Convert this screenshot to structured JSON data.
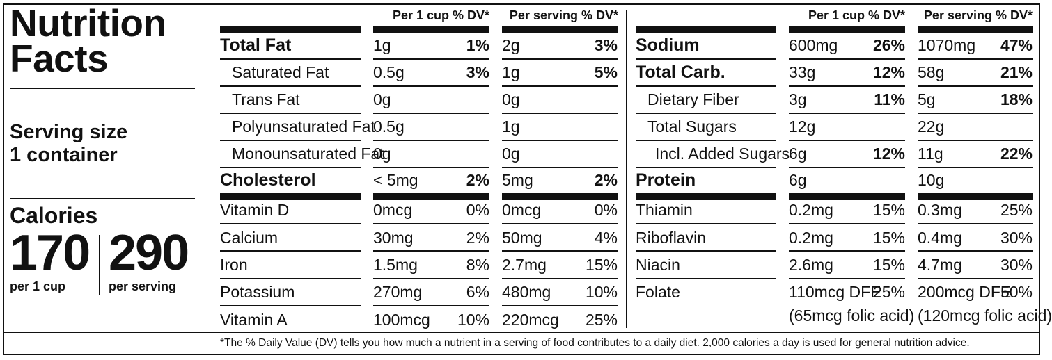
{
  "title_line1": "Nutrition",
  "title_line2": "Facts",
  "serving_size_label": "Serving size",
  "serving_size_value": "1 container",
  "calories_label": "Calories",
  "calories_per_cup": "170",
  "calories_per_cup_label": "per 1 cup",
  "calories_per_serving": "290",
  "calories_per_serving_label": "per serving",
  "col_per_cup": "Per 1 cup % DV*",
  "col_per_serving": "Per serving % DV*",
  "left_rows": [
    {
      "name": "Total Fat",
      "cup_amt": "1g",
      "cup_dv": "1%",
      "serv_amt": "2g",
      "serv_dv": "3%"
    },
    {
      "name": "Saturated Fat",
      "cup_amt": "0.5g",
      "cup_dv": "3%",
      "serv_amt": "1g",
      "serv_dv": "5%"
    },
    {
      "name": "Trans Fat",
      "cup_amt": "0g",
      "cup_dv": "",
      "serv_amt": "0g",
      "serv_dv": ""
    },
    {
      "name": "Polyunsaturated Fat",
      "cup_amt": "0.5g",
      "cup_dv": "",
      "serv_amt": "1g",
      "serv_dv": ""
    },
    {
      "name": "Monounsaturated Fat",
      "cup_amt": "0g",
      "cup_dv": "",
      "serv_amt": "0g",
      "serv_dv": ""
    },
    {
      "name": "Cholesterol",
      "cup_amt": "< 5mg",
      "cup_dv": "2%",
      "serv_amt": "5mg",
      "serv_dv": "2%"
    },
    {
      "name": "Vitamin D",
      "cup_amt": "0mcg",
      "cup_dv": "0%",
      "serv_amt": "0mcg",
      "serv_dv": "0%"
    },
    {
      "name": "Calcium",
      "cup_amt": "30mg",
      "cup_dv": "2%",
      "serv_amt": "50mg",
      "serv_dv": "4%"
    },
    {
      "name": "Iron",
      "cup_amt": "1.5mg",
      "cup_dv": "8%",
      "serv_amt": "2.7mg",
      "serv_dv": "15%"
    },
    {
      "name": "Potassium",
      "cup_amt": "270mg",
      "cup_dv": "6%",
      "serv_amt": "480mg",
      "serv_dv": "10%"
    },
    {
      "name": "Vitamin A",
      "cup_amt": "100mcg",
      "cup_dv": "10%",
      "serv_amt": "220mcg",
      "serv_dv": "25%"
    }
  ],
  "right_rows": [
    {
      "name": "Sodium",
      "cup_amt": "600mg",
      "cup_dv": "26%",
      "serv_amt": "1070mg",
      "serv_dv": "47%"
    },
    {
      "name": "Total Carb.",
      "cup_amt": "33g",
      "cup_dv": "12%",
      "serv_amt": "58g",
      "serv_dv": "21%"
    },
    {
      "name": "Dietary Fiber",
      "cup_amt": "3g",
      "cup_dv": "11%",
      "serv_amt": "5g",
      "serv_dv": "18%"
    },
    {
      "name": "Total Sugars",
      "cup_amt": "12g",
      "cup_dv": "",
      "serv_amt": "22g",
      "serv_dv": ""
    },
    {
      "name": "Incl. Added Sugars",
      "cup_amt": "6g",
      "cup_dv": "12%",
      "serv_amt": "11g",
      "serv_dv": "22%"
    },
    {
      "name": "Protein",
      "cup_amt": "6g",
      "cup_dv": "",
      "serv_amt": "10g",
      "serv_dv": ""
    },
    {
      "name": "Thiamin",
      "cup_amt": "0.2mg",
      "cup_dv": "15%",
      "serv_amt": "0.3mg",
      "serv_dv": "25%"
    },
    {
      "name": "Riboflavin",
      "cup_amt": "0.2mg",
      "cup_dv": "15%",
      "serv_amt": "0.4mg",
      "serv_dv": "30%"
    },
    {
      "name": "Niacin",
      "cup_amt": "2.6mg",
      "cup_dv": "15%",
      "serv_amt": "4.7mg",
      "serv_dv": "30%"
    },
    {
      "name": "Folate",
      "cup_amt": "110mcg DFE",
      "cup_dv": "25%",
      "serv_amt": "200mcg DFE",
      "serv_dv": "50%",
      "cup_note": "(65mcg folic acid)",
      "serv_note": "(120mcg folic acid)"
    }
  ],
  "footnote": "*The % Daily Value (DV) tells you how much a nutrient in a serving of food contributes to a daily diet. 2,000 calories a day is used for general nutrition advice."
}
